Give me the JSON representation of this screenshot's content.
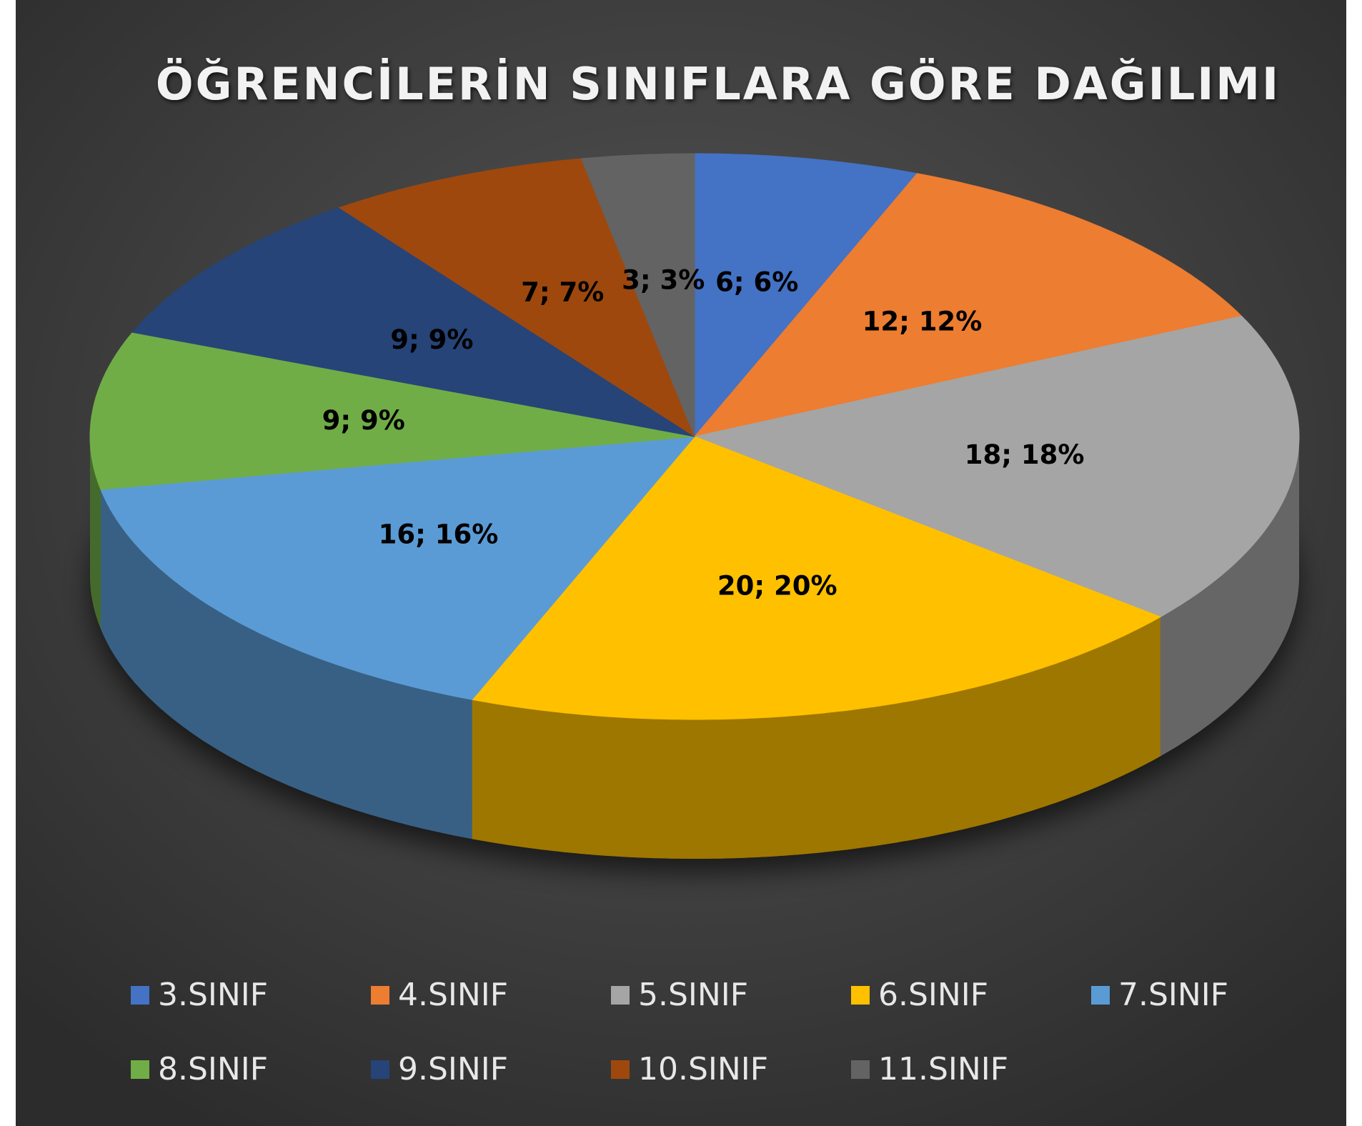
{
  "chart_data": {
    "type": "pie",
    "title": "ÖĞRENCİLERİN SINIFLARA GÖRE DAĞILIMI",
    "categories": [
      "3.SINIF",
      "4.SINIF",
      "5.SINIF",
      "6.SINIF",
      "7.SINIF",
      "8.SINIF",
      "9.SINIF",
      "10.SINIF",
      "11.SINIF"
    ],
    "values": [
      6,
      12,
      18,
      20,
      16,
      9,
      9,
      7,
      3
    ],
    "value_labels": [
      "6; 6%",
      "12; 12%",
      "18; 18%",
      "20; 20%",
      "16; 16%",
      "9; 9%",
      "9; 9%",
      "7; 7%",
      "3; 3%"
    ],
    "colors": [
      "#4472c4",
      "#ed7d31",
      "#a5a5a5",
      "#ffc000",
      "#5b9bd5",
      "#70ad47",
      "#264478",
      "#9e480e",
      "#636363"
    ],
    "legend": "bottom"
  }
}
